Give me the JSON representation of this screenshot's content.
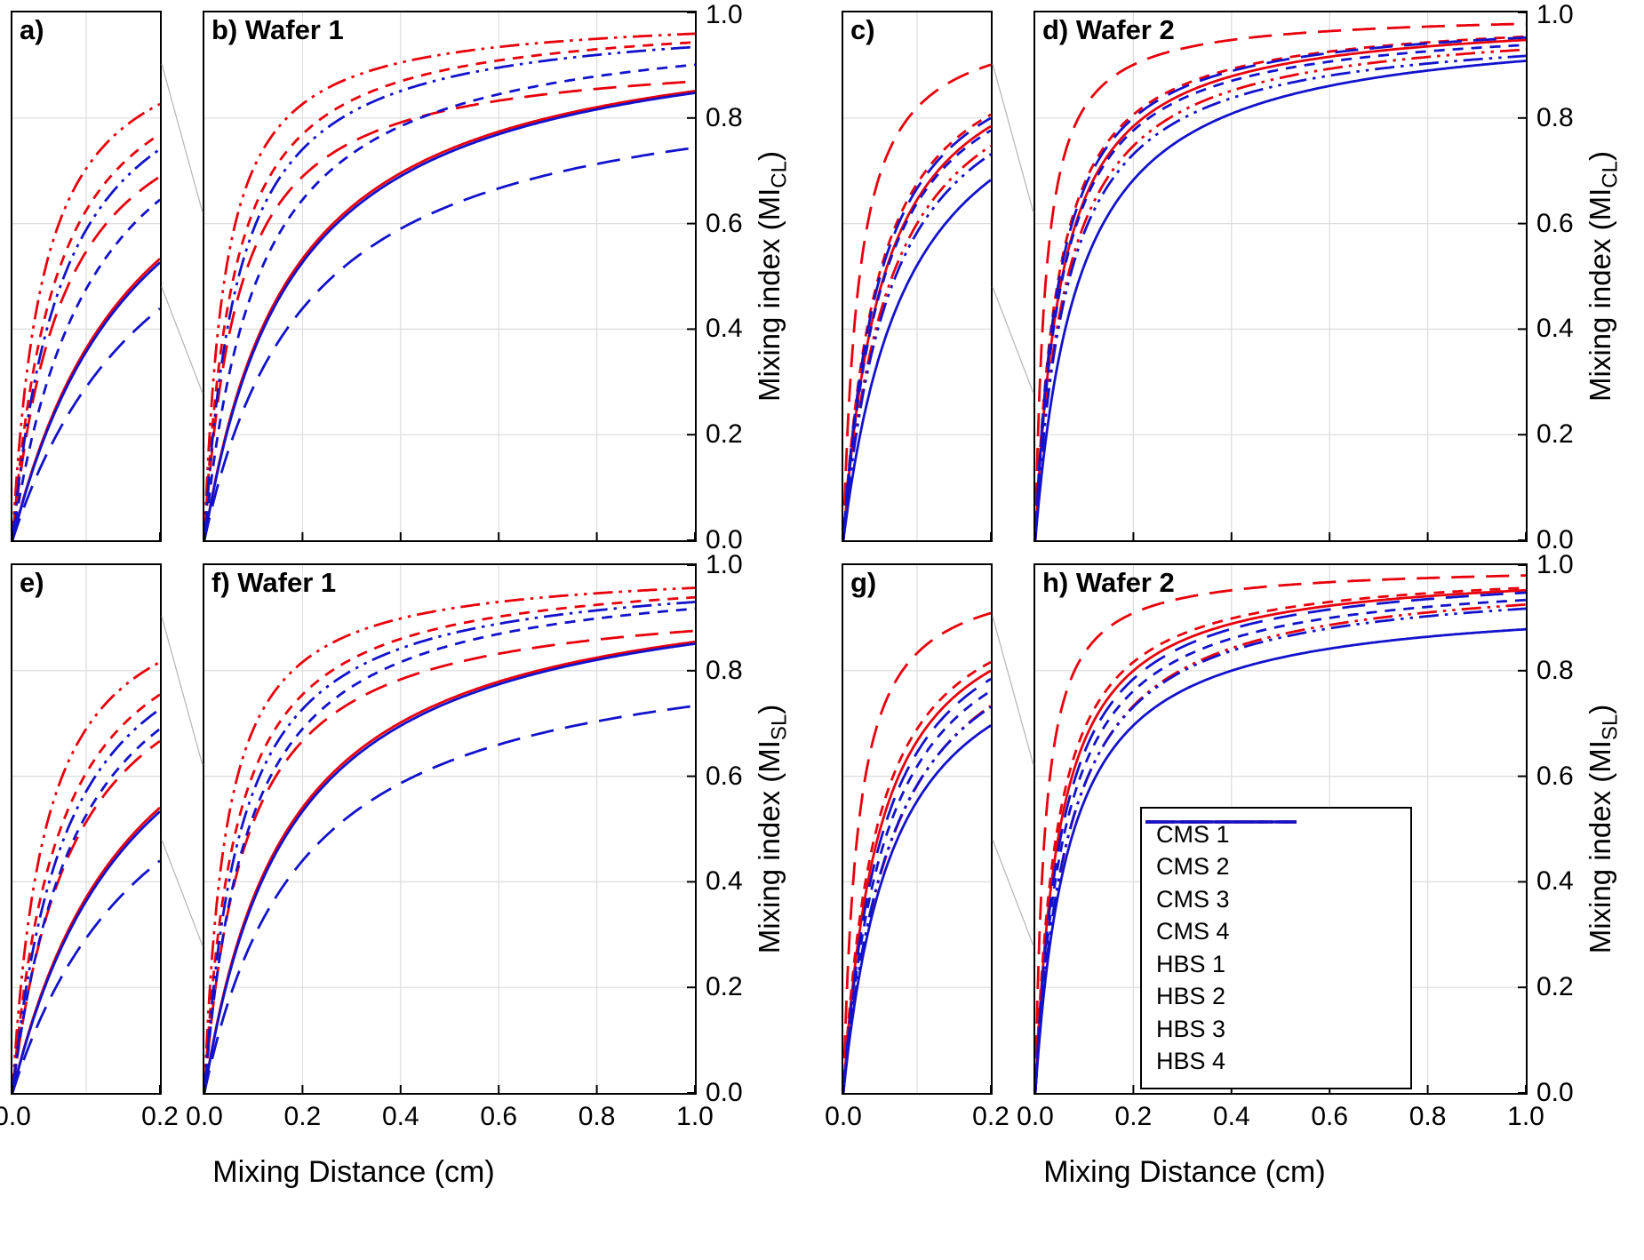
{
  "chart_data": {
    "type": "line",
    "xlabel": "Mixing Distance (cm)",
    "ylabel_prefix": "Mixing index (MI",
    "ylabel_suffix": ")",
    "ylim": [
      0,
      1
    ],
    "yticks": [
      0,
      0.2,
      0.4,
      0.6,
      0.8,
      1.0
    ],
    "ygrid": [
      0.2,
      0.4,
      0.6,
      0.8
    ],
    "grid": true,
    "legend_position": "inside panel h, lower middle",
    "model": "MI(x) = asymptote * x / (x + half_rise_cm), x in cm; half_rise_cm is the mixing distance where MI reaches half the asymptote",
    "rows": [
      {
        "ylabel_sub": "CL"
      },
      {
        "ylabel_sub": "SL"
      }
    ],
    "series": [
      {
        "name": "CMS 1",
        "color": "#e8000b",
        "dash": "solid"
      },
      {
        "name": "CMS 2",
        "color": "#e8000b",
        "dash": "longdash"
      },
      {
        "name": "CMS 3",
        "color": "#e8000b",
        "dash": "dash"
      },
      {
        "name": "CMS 4",
        "color": "#e8000b",
        "dash": "dashdotdot"
      },
      {
        "name": "HBS 1",
        "color": "#1212cc",
        "dash": "solid"
      },
      {
        "name": "HBS 2",
        "color": "#1212cc",
        "dash": "longdash"
      },
      {
        "name": "HBS 3",
        "color": "#1212cc",
        "dash": "dash"
      },
      {
        "name": "HBS 4",
        "color": "#1212cc",
        "dash": "dashdotdot"
      }
    ],
    "panels": [
      {
        "id": "a",
        "label": "a)",
        "title": "",
        "xlim": [
          0,
          0.2
        ],
        "xticks": [
          0,
          0.2
        ],
        "xgrid": [
          0.1
        ],
        "curves": "wafer1_CL",
        "row": 0,
        "zoom_of": "b",
        "xticklabels": false,
        "yaxis_right": false,
        "legend": false
      },
      {
        "id": "b",
        "label": "b)",
        "title": "Wafer 1",
        "xlim": [
          0,
          1
        ],
        "xticks": [
          0,
          0.2,
          0.4,
          0.6,
          0.8,
          1
        ],
        "xgrid": [
          0.2,
          0.4,
          0.6,
          0.8
        ],
        "curves": "wafer1_CL",
        "row": 0,
        "xticklabels": false,
        "yaxis_right": true,
        "legend": false
      },
      {
        "id": "c",
        "label": "c)",
        "title": "",
        "xlim": [
          0,
          0.2
        ],
        "xticks": [
          0,
          0.2
        ],
        "xgrid": [
          0.1
        ],
        "curves": "wafer2_CL",
        "row": 0,
        "zoom_of": "d",
        "xticklabels": false,
        "yaxis_right": false,
        "legend": false
      },
      {
        "id": "d",
        "label": "d)",
        "title": "Wafer 2",
        "xlim": [
          0,
          1
        ],
        "xticks": [
          0,
          0.2,
          0.4,
          0.6,
          0.8,
          1
        ],
        "xgrid": [
          0.2,
          0.4,
          0.6,
          0.8
        ],
        "curves": "wafer2_CL",
        "row": 0,
        "xticklabels": false,
        "yaxis_right": true,
        "legend": false
      },
      {
        "id": "e",
        "label": "e)",
        "title": "",
        "xlim": [
          0,
          0.2
        ],
        "xticks": [
          0,
          0.2
        ],
        "xgrid": [
          0.1
        ],
        "curves": "wafer1_SL",
        "row": 1,
        "zoom_of": "f",
        "xticklabels": true,
        "yaxis_right": false,
        "legend": false
      },
      {
        "id": "f",
        "label": "f)",
        "title": "Wafer 1",
        "xlim": [
          0,
          1
        ],
        "xticks": [
          0,
          0.2,
          0.4,
          0.6,
          0.8,
          1
        ],
        "xgrid": [
          0.2,
          0.4,
          0.6,
          0.8
        ],
        "curves": "wafer1_SL",
        "row": 1,
        "xticklabels": true,
        "yaxis_right": true,
        "legend": false
      },
      {
        "id": "g",
        "label": "g)",
        "title": "",
        "xlim": [
          0,
          0.2
        ],
        "xticks": [
          0,
          0.2
        ],
        "xgrid": [
          0.1
        ],
        "curves": "wafer2_SL",
        "row": 1,
        "zoom_of": "h",
        "xticklabels": true,
        "yaxis_right": false,
        "legend": false
      },
      {
        "id": "h",
        "label": "h)",
        "title": "Wafer 2",
        "xlim": [
          0,
          1
        ],
        "xticks": [
          0,
          0.2,
          0.4,
          0.6,
          0.8,
          1
        ],
        "xgrid": [
          0.2,
          0.4,
          0.6,
          0.8
        ],
        "curves": "wafer2_SL",
        "row": 1,
        "xticklabels": true,
        "yaxis_right": true,
        "legend": true
      }
    ],
    "curve_sets": {
      "wafer1_CL": [
        {
          "series": "CMS 1",
          "asymptote": 1.0,
          "half_rise_cm": 0.175,
          "mi_at_1cm": 0.85
        },
        {
          "series": "CMS 2",
          "asymptote": 0.93,
          "half_rise_cm": 0.07,
          "mi_at_1cm": 0.87
        },
        {
          "series": "CMS 3",
          "asymptote": 1.0,
          "half_rise_cm": 0.06,
          "mi_at_1cm": 0.94
        },
        {
          "series": "CMS 4",
          "asymptote": 1.0,
          "half_rise_cm": 0.042,
          "mi_at_1cm": 0.96
        },
        {
          "series": "HBS 1",
          "asymptote": 1.0,
          "half_rise_cm": 0.18,
          "mi_at_1cm": 0.85
        },
        {
          "series": "HBS 2",
          "asymptote": 0.9,
          "half_rise_cm": 0.21,
          "mi_at_1cm": 0.74
        },
        {
          "series": "HBS 3",
          "asymptote": 1.0,
          "half_rise_cm": 0.11,
          "mi_at_1cm": 0.9
        },
        {
          "series": "HBS 4",
          "asymptote": 1.0,
          "half_rise_cm": 0.07,
          "mi_at_1cm": 0.93
        }
      ],
      "wafer2_CL": [
        {
          "series": "CMS 1",
          "asymptote": 1.0,
          "half_rise_cm": 0.055,
          "mi_at_1cm": 0.95
        },
        {
          "series": "CMS 2",
          "asymptote": 1.0,
          "half_rise_cm": 0.022,
          "mi_at_1cm": 0.98
        },
        {
          "series": "CMS 3",
          "asymptote": 1.0,
          "half_rise_cm": 0.048,
          "mi_at_1cm": 0.95
        },
        {
          "series": "CMS 4",
          "asymptote": 0.99,
          "half_rise_cm": 0.065,
          "mi_at_1cm": 0.93
        },
        {
          "series": "HBS 1",
          "asymptote": 0.99,
          "half_rise_cm": 0.09,
          "mi_at_1cm": 0.91
        },
        {
          "series": "HBS 2",
          "asymptote": 1.0,
          "half_rise_cm": 0.05,
          "mi_at_1cm": 0.95
        },
        {
          "series": "HBS 3",
          "asymptote": 0.99,
          "half_rise_cm": 0.055,
          "mi_at_1cm": 0.94
        },
        {
          "series": "HBS 4",
          "asymptote": 0.98,
          "half_rise_cm": 0.068,
          "mi_at_1cm": 0.92
        }
      ],
      "wafer1_SL": [
        {
          "series": "CMS 1",
          "asymptote": 1.0,
          "half_rise_cm": 0.17,
          "mi_at_1cm": 0.85
        },
        {
          "series": "CMS 2",
          "asymptote": 0.95,
          "half_rise_cm": 0.085,
          "mi_at_1cm": 0.88
        },
        {
          "series": "CMS 3",
          "asymptote": 1.0,
          "half_rise_cm": 0.065,
          "mi_at_1cm": 0.94
        },
        {
          "series": "CMS 4",
          "asymptote": 1.0,
          "half_rise_cm": 0.045,
          "mi_at_1cm": 0.96
        },
        {
          "series": "HBS 1",
          "asymptote": 1.0,
          "half_rise_cm": 0.175,
          "mi_at_1cm": 0.85
        },
        {
          "series": "HBS 2",
          "asymptote": 0.88,
          "half_rise_cm": 0.2,
          "mi_at_1cm": 0.73
        },
        {
          "series": "HBS 3",
          "asymptote": 1.0,
          "half_rise_cm": 0.09,
          "mi_at_1cm": 0.92
        },
        {
          "series": "HBS 4",
          "asymptote": 1.0,
          "half_rise_cm": 0.075,
          "mi_at_1cm": 0.93
        }
      ],
      "wafer2_SL": [
        {
          "series": "CMS 1",
          "asymptote": 1.0,
          "half_rise_cm": 0.05,
          "mi_at_1cm": 0.95
        },
        {
          "series": "CMS 2",
          "asymptote": 1.0,
          "half_rise_cm": 0.02,
          "mi_at_1cm": 0.98
        },
        {
          "series": "CMS 3",
          "asymptote": 1.0,
          "half_rise_cm": 0.045,
          "mi_at_1cm": 0.96
        },
        {
          "series": "CMS 4",
          "asymptote": 0.99,
          "half_rise_cm": 0.07,
          "mi_at_1cm": 0.93
        },
        {
          "series": "HBS 1",
          "asymptote": 0.94,
          "half_rise_cm": 0.07,
          "mi_at_1cm": 0.88
        },
        {
          "series": "HBS 2",
          "asymptote": 1.0,
          "half_rise_cm": 0.055,
          "mi_at_1cm": 0.95
        },
        {
          "series": "HBS 3",
          "asymptote": 0.99,
          "half_rise_cm": 0.06,
          "mi_at_1cm": 0.93
        },
        {
          "series": "HBS 4",
          "asymptote": 0.98,
          "half_rise_cm": 0.068,
          "mi_at_1cm": 0.92
        }
      ]
    },
    "legend": {
      "entries": [
        "CMS 1",
        "CMS 2",
        "CMS 3",
        "CMS 4",
        "HBS 1",
        "HBS 2",
        "HBS 3",
        "HBS 4"
      ]
    }
  }
}
